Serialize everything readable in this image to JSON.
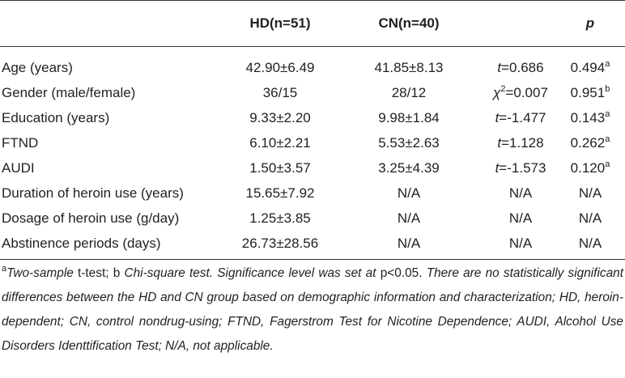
{
  "table": {
    "header": {
      "hd": "HD(n=51)",
      "cn": "CN(n=40)",
      "p": "p"
    },
    "rows": [
      {
        "label": "Age (years)",
        "hd": "42.90±6.49",
        "cn": "41.85±8.13",
        "stat": {
          "symbol": "t",
          "text": "=0.686"
        },
        "p": {
          "value": "0.494",
          "note": "a"
        }
      },
      {
        "label": "Gender (male/female)",
        "hd": "36/15",
        "cn": "28/12",
        "stat": {
          "symbol": "χ",
          "sup": "2",
          "text": "=0.007"
        },
        "p": {
          "value": "0.951",
          "note": "b"
        }
      },
      {
        "label": "Education (years)",
        "hd": "9.33±2.20",
        "cn": "9.98±1.84",
        "stat": {
          "symbol": "t",
          "text": "=-1.477"
        },
        "p": {
          "value": "0.143",
          "note": "a"
        }
      },
      {
        "label": "FTND",
        "hd": "6.10±2.21",
        "cn": "5.53±2.63",
        "stat": {
          "symbol": "t",
          "text": "=1.128"
        },
        "p": {
          "value": "0.262",
          "note": "a"
        }
      },
      {
        "label": "AUDI",
        "hd": "1.50±3.57",
        "cn": "3.25±4.39",
        "stat": {
          "symbol": "t",
          "text": "=-1.573"
        },
        "p": {
          "value": "0.120",
          "note": "a"
        }
      },
      {
        "label": "Duration of heroin use (years)",
        "hd": "15.65±7.92",
        "cn": "N/A",
        "stat": "N/A",
        "p": "N/A"
      },
      {
        "label": "Dosage of heroin use (g/day)",
        "hd": "1.25±3.85",
        "cn": "N/A",
        "stat": "N/A",
        "p": "N/A"
      },
      {
        "label": "Abstinence periods (days)",
        "hd": "26.73±28.56",
        "cn": "N/A",
        "stat": "N/A",
        "p": "N/A"
      }
    ],
    "footnote": [
      {
        "text": "a",
        "sup": true
      },
      {
        "text": "Two-sample",
        "italic": true
      },
      {
        "text": " t-test; b "
      },
      {
        "text": "Chi-square test. Significance level was set at",
        "italic": true
      },
      {
        "text": " p<0.05. "
      },
      {
        "text": "There are no statistically significant differences between the HD and CN group based on demographic information and characterization; HD, heroin-dependent; CN, control nondrug-using; FTND, Fagerstrom Test for Nicotine Dependence; AUDI, Alcohol Use Disorders Identtification Test; N/A, not applicable.",
        "italic": true
      }
    ]
  }
}
